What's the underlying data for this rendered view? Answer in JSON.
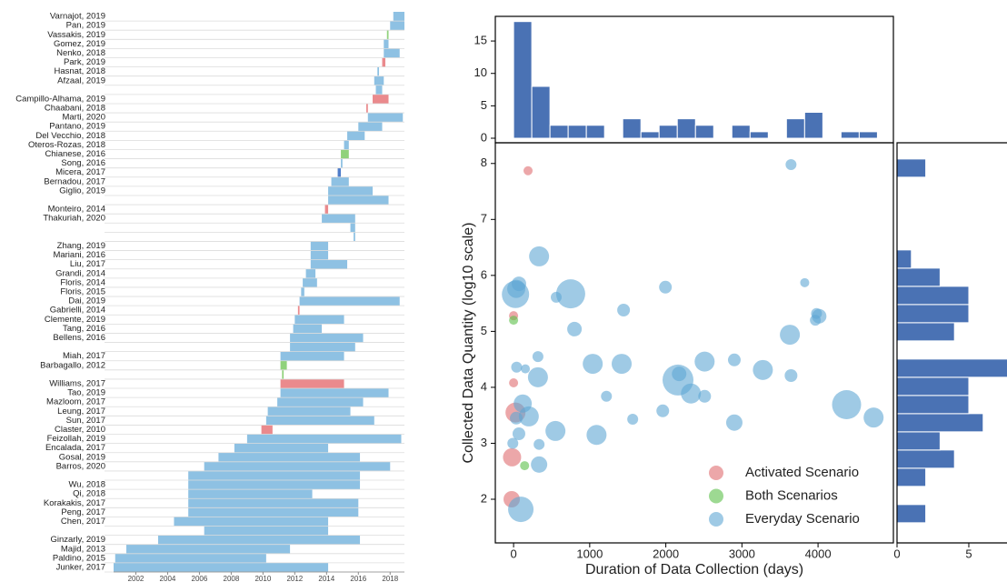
{
  "chart_data": [
    {
      "type": "timeline",
      "categories": [
        "Varnajot, 2019",
        "Pan, 2019",
        "Vassakis, 2019",
        "Gomez, 2019",
        "Nenko, 2018",
        "Park, 2019",
        "Hasnat, 2018",
        "Afzaal, 2019",
        null,
        "Campillo-Alhama, 2019",
        "Chaabani, 2018",
        "Marti, 2020",
        "Pantano, 2019",
        "Del Vecchio, 2018",
        "Oteros-Rozas, 2018",
        "Chianese, 2016",
        "Song, 2016",
        "Micera, 2017",
        "Bernadou, 2017",
        "Giglio, 2019",
        null,
        "Monteiro, 2014",
        "Thakuriah, 2020",
        null,
        null,
        "Zhang, 2019",
        "Mariani, 2016",
        "Liu, 2017",
        "Grandi, 2014",
        "Floris, 2014",
        "Floris, 2015",
        "Dai, 2019",
        "Gabrielli, 2014",
        "Clemente, 2019",
        "Tang, 2016",
        "Bellens, 2016",
        null,
        "Miah, 2017",
        "Barbagallo, 2012",
        null,
        "Williams, 2017",
        "Tao, 2019",
        "Mazloom, 2017",
        "Leung, 2017",
        "Sun, 2017",
        "Claster, 2010",
        "Feizollah, 2019",
        "Encalada, 2017",
        "Gosal, 2019",
        "Barros, 2020",
        null,
        "Wu, 2018",
        "Qi, 2018",
        "Korakakis, 2017",
        "Peng, 2017",
        "Chen, 2017",
        null,
        "Ginzarly, 2019",
        "Majid, 2013",
        "Paldino, 2015",
        "Junker, 2017"
      ],
      "start": [
        2018.2,
        2018.0,
        2017.8,
        2017.6,
        2017.6,
        2017.5,
        2017.2,
        2017.0,
        2017.1,
        2016.9,
        2016.5,
        2016.6,
        2016.0,
        2015.3,
        2015.1,
        2014.9,
        2014.9,
        2014.7,
        2014.3,
        2014.1,
        2014.1,
        2013.9,
        2013.7,
        2015.5,
        2015.7,
        2013.0,
        2013.0,
        2013.0,
        2012.7,
        2012.5,
        2012.4,
        2012.3,
        2012.2,
        2012.0,
        2011.9,
        2011.7,
        2011.7,
        2011.1,
        2011.1,
        2011.2,
        2011.1,
        2011.1,
        2010.9,
        2010.3,
        2010.2,
        2009.9,
        2009.0,
        2008.2,
        2007.2,
        2006.3,
        2005.3,
        2005.3,
        2005.3,
        2005.3,
        2005.3,
        2004.4,
        2006.3,
        2003.4,
        2001.4,
        2000.7,
        2000.6
      ],
      "end": [
        2018.9,
        2018.9,
        2017.9,
        2017.9,
        2018.6,
        2017.7,
        2017.3,
        2017.6,
        2017.5,
        2017.9,
        2016.6,
        2018.8,
        2017.5,
        2016.4,
        2015.4,
        2015.4,
        2015.0,
        2014.9,
        2015.4,
        2016.9,
        2017.9,
        2014.1,
        2015.8,
        2015.8,
        2015.8,
        2014.1,
        2014.1,
        2015.3,
        2013.3,
        2013.4,
        2012.6,
        2018.6,
        2012.3,
        2015.1,
        2013.7,
        2016.3,
        2015.8,
        2015.1,
        2011.5,
        2011.3,
        2015.1,
        2017.9,
        2016.3,
        2015.5,
        2017.0,
        2010.6,
        2018.7,
        2014.1,
        2016.1,
        2018.0,
        2016.1,
        2016.1,
        2013.1,
        2016.0,
        2016.0,
        2014.1,
        2014.1,
        2016.1,
        2011.7,
        2010.2,
        2014.1
      ],
      "colors": [
        "#8ec1e3",
        "#8ec1e3",
        "#90d27c",
        "#8ec1e3",
        "#8ec1e3",
        "#ea8a8d",
        "#8ec1e3",
        "#8ec1e3",
        "#8ec1e3",
        "#ea8a8d",
        "#ea8a8d",
        "#8ec1e3",
        "#8ec1e3",
        "#8ec1e3",
        "#8ec1e3",
        "#90d27c",
        "#8ec1e3",
        "#4f7dc9",
        "#8ec1e3",
        "#8ec1e3",
        "#8ec1e3",
        "#ea8a8d",
        "#8ec1e3",
        "#8ec1e3",
        "#8ec1e3",
        "#8ec1e3",
        "#8ec1e3",
        "#8ec1e3",
        "#8ec1e3",
        "#8ec1e3",
        "#8ec1e3",
        "#8ec1e3",
        "#ea8a8d",
        "#8ec1e3",
        "#8ec1e3",
        "#8ec1e3",
        "#8ec1e3",
        "#8ec1e3",
        "#90d27c",
        "#90d27c",
        "#ea8a8d",
        "#8ec1e3",
        "#8ec1e3",
        "#8ec1e3",
        "#8ec1e3",
        "#ea8a8d",
        "#8ec1e3",
        "#8ec1e3",
        "#8ec1e3",
        "#8ec1e3",
        "#8ec1e3",
        "#8ec1e3",
        "#8ec1e3",
        "#8ec1e3",
        "#8ec1e3",
        "#8ec1e3",
        "#8ec1e3",
        "#8ec1e3",
        "#8ec1e3",
        "#8ec1e3",
        "#8ec1e3"
      ],
      "xlim": [
        2000.6,
        2018.9
      ],
      "xticks": [
        2002,
        2004,
        2006,
        2008,
        2010,
        2012,
        2014,
        2016,
        2018
      ],
      "grid": true
    },
    {
      "type": "histogram",
      "bins": [
        0,
        239,
        478,
        717,
        956,
        1195,
        1434,
        1673,
        1912,
        2151,
        2390,
        2629,
        2868,
        3107,
        3346,
        3585,
        3824,
        4063,
        4302,
        4541,
        4780
      ],
      "values": [
        18,
        8,
        2,
        2,
        2,
        0,
        3,
        1,
        2,
        3,
        2,
        0,
        2,
        1,
        0,
        3,
        4,
        0,
        1,
        1
      ],
      "color": "#4a72b4",
      "xlim": [
        -240,
        4990
      ],
      "ylim": [
        -0.7,
        18.8
      ],
      "yticks": [
        0,
        5,
        10,
        15
      ]
    },
    {
      "type": "scatter",
      "xlabel": "Duration of Data Collection (days)",
      "ylabel": "Collected Data Quantity (log10 scale)",
      "xlim": [
        -240,
        4990
      ],
      "ylim": [
        1.22,
        8.37
      ],
      "xticks": [
        0,
        1000,
        2000,
        3000,
        4000
      ],
      "yticks": [
        2,
        3,
        4,
        5,
        6,
        7,
        8
      ],
      "legend": "lower right",
      "series": [
        {
          "name": "Activated Scenario",
          "color": "#e06c70",
          "x": [
            190,
            0,
            0,
            25,
            -25,
            -20
          ],
          "values": [
            7.87,
            5.28,
            4.08,
            3.55,
            2.0,
            2.75
          ],
          "sizes": [
            5,
            5,
            5,
            11,
            9,
            10
          ]
        },
        {
          "name": "Both Scenarios",
          "color": "#5cbf4a",
          "x": [
            145,
            0
          ],
          "values": [
            2.6,
            5.2
          ],
          "sizes": [
            5,
            5
          ]
        },
        {
          "name": "Everyday Scenario",
          "color": "#5fa6d4",
          "x": [
            3645,
            35,
            70,
            25,
            40,
            155,
            320,
            320,
            120,
            200,
            35,
            70,
            -10,
            335,
            335,
            95,
            335,
            560,
            750,
            800,
            1040,
            1090,
            550,
            1220,
            1445,
            1420,
            1565,
            1960,
            1995,
            2175,
            2160,
            2330,
            2510,
            2510,
            2900,
            2900,
            3275,
            3630,
            3645,
            3825,
            3965,
            3980,
            4015,
            4375,
            4730
          ],
          "values": [
            7.98,
            5.76,
            5.85,
            5.66,
            4.36,
            4.33,
            4.55,
            4.18,
            3.71,
            3.48,
            3.45,
            3.17,
            3.0,
            2.98,
            2.62,
            1.82,
            6.34,
            5.61,
            5.67,
            5.04,
            4.42,
            3.15,
            3.22,
            3.84,
            5.38,
            4.42,
            3.43,
            3.58,
            5.79,
            4.24,
            4.13,
            3.89,
            3.84,
            4.46,
            4.49,
            3.37,
            4.31,
            4.94,
            4.21,
            5.87,
            5.2,
            5.32,
            5.27,
            3.69,
            3.46
          ],
          "sizes": [
            6,
            10,
            8,
            15,
            6,
            5,
            6,
            11,
            10,
            11,
            7,
            7,
            6,
            6,
            9,
            14,
            11,
            6,
            16,
            8,
            11,
            11,
            11,
            6,
            7,
            11,
            6,
            7,
            7,
            8,
            17,
            11,
            7,
            11,
            7,
            9,
            11,
            11,
            7,
            5,
            6,
            6,
            8,
            16,
            11
          ]
        }
      ]
    },
    {
      "type": "histogram",
      "orientation": "horizontal",
      "bins": [
        1.58,
        1.905,
        2.23,
        2.555,
        2.88,
        3.205,
        3.53,
        3.855,
        4.18,
        4.505,
        4.83,
        5.155,
        5.48,
        5.805,
        6.13,
        6.455,
        6.78,
        7.105,
        7.43,
        7.755,
        8.08
      ],
      "values": [
        2,
        0,
        2,
        4,
        3,
        6,
        5,
        5,
        8,
        0,
        4,
        5,
        5,
        3,
        1,
        0,
        0,
        0,
        0,
        2
      ],
      "color": "#4a72b4",
      "xlim": [
        0,
        7.66
      ],
      "xticks": [
        0,
        5
      ],
      "ylim": [
        1.22,
        8.37
      ]
    }
  ]
}
